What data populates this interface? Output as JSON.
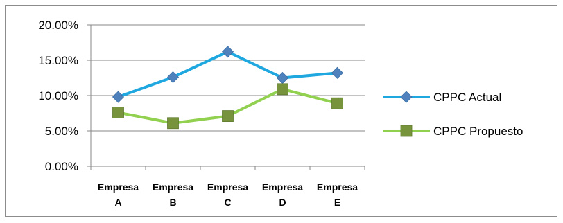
{
  "chart_data": {
    "type": "line",
    "categories": [
      [
        "Empresa",
        "A"
      ],
      [
        "Empresa",
        "B"
      ],
      [
        "Empresa",
        "C"
      ],
      [
        "Empresa",
        "D"
      ],
      [
        "Empresa",
        "E"
      ]
    ],
    "y_ticks": [
      "0.00%",
      "5.00%",
      "10.00%",
      "15.00%",
      "20.00%"
    ],
    "ylim": [
      0,
      20
    ],
    "grid": true,
    "legend_position": "right",
    "series": [
      {
        "name": "CPPC Actual",
        "values": [
          9.8,
          12.6,
          16.2,
          12.5,
          13.2
        ],
        "color": "#1fa8e0",
        "marker": "diamond",
        "marker_color": "#4f81bd"
      },
      {
        "name": "CPPC Propuesto",
        "values": [
          7.6,
          6.1,
          7.1,
          10.9,
          8.9
        ],
        "color": "#92d050",
        "marker": "square",
        "marker_color": "#77933c"
      }
    ]
  }
}
